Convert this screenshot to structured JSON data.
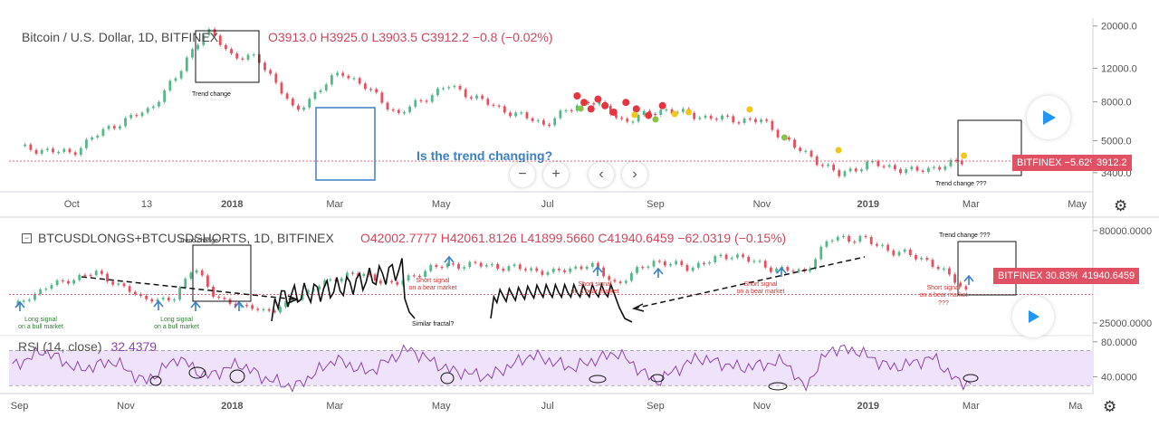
{
  "chart_data": [
    {
      "type": "candlestick",
      "title": "Bitcoin / U.S. Dollar, 1D, BITFINEX",
      "ohlc": {
        "open": "O3913.0",
        "high": "H3925.0",
        "low": "L3903.5",
        "close": "C3912.2",
        "change": "−0.8 (−0.02%)"
      },
      "scale": "log",
      "y_ticks": [
        "20000.0",
        "12000.0",
        "8000.0",
        "5000.0",
        "3400.0"
      ],
      "y_tick_values": [
        20000,
        12000,
        8000,
        5000,
        3400
      ],
      "ylim": [
        2700,
        22000
      ],
      "x_ticks": [
        "Oct",
        "13",
        "2018",
        "Mar",
        "May",
        "Jul",
        "Sep",
        "Nov",
        "2019",
        "Mar",
        "May"
      ],
      "last_price_label": "BITFINEX −5.62%",
      "last_price": "3912.2",
      "annotation": "Is the trend changing?",
      "box_labels": [
        "Trend change",
        "Trend change ???"
      ],
      "series": [
        {
          "x": [
            "2017-09-01",
            "2017-10-01",
            "2017-10-20",
            "2017-11-15",
            "2017-12-01",
            "2017-12-17",
            "2018-01-01",
            "2018-01-15",
            "2018-02-06",
            "2018-03-05",
            "2018-04-06",
            "2018-05-05",
            "2018-06-01",
            "2018-06-29",
            "2018-07-25",
            "2018-08-14",
            "2018-09-05",
            "2018-10-01",
            "2018-11-01",
            "2018-11-20",
            "2018-12-15",
            "2019-01-01",
            "2019-01-28",
            "2019-02-25"
          ],
          "y": [
            4600,
            4300,
            5700,
            7300,
            10900,
            19000,
            14000,
            13500,
            6900,
            11500,
            6800,
            9700,
            7500,
            6100,
            8200,
            6300,
            7300,
            6600,
            6350,
            4600,
            3300,
            3800,
            3450,
            3900
          ]
        }
      ]
    },
    {
      "type": "candlestick",
      "title": "BTCUSDLONGS+BTCUSDSHORTS, 1D, BITFINEX",
      "ohlc": {
        "open": "O42002.7777",
        "high": "H42061.8126",
        "low": "L41899.5660",
        "close": "C41940.6459",
        "change": "−62.0319 (−0.15%)"
      },
      "y_ticks": [
        "80000.0000",
        "25000.0000"
      ],
      "y_tick_values": [
        80000,
        25000
      ],
      "ylim": [
        18000,
        88000
      ],
      "last_price_label": "BITFINEX 30.83%",
      "last_price": "41940.6459",
      "annotations": [
        "Long signal on a bull market",
        "Long signal on a bull market",
        "Short signal on a bear market",
        "Short signal on a bear market",
        "Short signal on a bear market",
        "Short signal on a bear market ???",
        "Similar fractal?",
        "Trend change",
        "Trend change ???"
      ],
      "series": [
        {
          "x": [
            "2017-08-28",
            "2017-09-20",
            "2017-10-15",
            "2017-11-10",
            "2017-11-28",
            "2017-12-10",
            "2017-12-20",
            "2018-01-05",
            "2018-01-25",
            "2018-02-15",
            "2018-03-10",
            "2018-04-05",
            "2018-04-25",
            "2018-05-15",
            "2018-06-10",
            "2018-07-05",
            "2018-07-25",
            "2018-08-10",
            "2018-08-30",
            "2018-09-20",
            "2018-10-15",
            "2018-11-05",
            "2018-11-25",
            "2018-12-10",
            "2018-12-25",
            "2019-01-15",
            "2019-02-05",
            "2019-02-20",
            "2019-03-01"
          ],
          "y": [
            35000,
            48000,
            55000,
            40000,
            38000,
            60000,
            42000,
            35000,
            32000,
            45000,
            55000,
            48000,
            58000,
            60000,
            58000,
            55000,
            60000,
            48000,
            62000,
            58000,
            66000,
            58000,
            55000,
            75000,
            76000,
            68000,
            62000,
            50000,
            41940
          ]
        }
      ]
    },
    {
      "type": "line",
      "title": "RSI (14, close)",
      "last_value": "32.4379",
      "y_ticks": [
        "80.0000",
        "40.0000"
      ],
      "y_tick_values": [
        80,
        40
      ],
      "ylim": [
        22,
        88
      ],
      "bands": [
        30,
        70
      ],
      "x_ticks": [
        "Sep",
        "Nov",
        "2018",
        "Mar",
        "May",
        "Jul",
        "Sep",
        "Nov",
        "2019",
        "Mar",
        "Ma"
      ],
      "series": [
        {
          "name": "RSI",
          "x": [
            "2017-08-28",
            "2017-09-15",
            "2017-10-05",
            "2017-10-25",
            "2017-11-12",
            "2017-12-01",
            "2017-12-17",
            "2018-01-05",
            "2018-01-20",
            "2018-02-06",
            "2018-03-01",
            "2018-03-20",
            "2018-04-12",
            "2018-05-05",
            "2018-05-28",
            "2018-06-22",
            "2018-07-15",
            "2018-08-10",
            "2018-09-01",
            "2018-09-25",
            "2018-10-20",
            "2018-11-15",
            "2018-11-25",
            "2018-12-10",
            "2018-12-25",
            "2019-01-15",
            "2019-02-08",
            "2019-02-20",
            "2019-03-01"
          ],
          "y": [
            52,
            70,
            48,
            58,
            34,
            62,
            40,
            55,
            38,
            28,
            60,
            45,
            72,
            48,
            40,
            65,
            50,
            68,
            34,
            62,
            50,
            58,
            26,
            72,
            70,
            50,
            62,
            36,
            32
          ]
        }
      ]
    }
  ],
  "colors": {
    "up": "#53b987",
    "down": "#eb4d5c",
    "rsi": "#8e44ad",
    "rsi_band": "#efe2fb",
    "price_line": "#e05263",
    "annotation_blue": "#3b7fc4"
  },
  "icons": {
    "gear": "gear-icon",
    "play": "play-icon",
    "zoom_out": "minus-icon",
    "zoom_in": "plus-icon",
    "left": "chevron-left-icon",
    "right": "chevron-right-icon"
  },
  "controls": {
    "zoom_out": "−",
    "zoom_in": "+",
    "scroll_left": "‹",
    "scroll_right": "›"
  },
  "top_markers": {
    "red": [
      "2018-07-18",
      "2018-07-22",
      "2018-07-26",
      "2018-07-30",
      "2018-08-03",
      "2018-08-08",
      "2018-08-15",
      "2018-08-21",
      "2018-08-28",
      "2018-09-05"
    ],
    "yellow": [
      "2018-08-20",
      "2018-09-12",
      "2018-09-20",
      "2018-10-25",
      "2018-12-15",
      "2019-02-25"
    ],
    "green": [
      "2018-07-20",
      "2018-09-01",
      "2018-11-14"
    ]
  }
}
